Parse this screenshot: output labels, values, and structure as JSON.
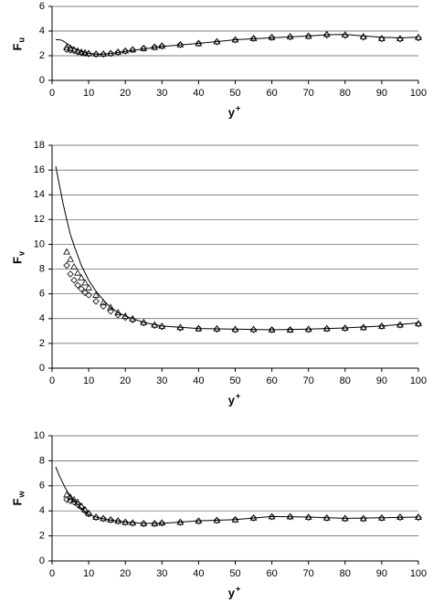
{
  "chart_data": [
    {
      "type": "line",
      "x_label": "y",
      "x_label_sup": "+",
      "y_label": "F",
      "y_label_sub": "u",
      "xlim": [
        0,
        100
      ],
      "xticks": [
        0,
        10,
        20,
        30,
        40,
        50,
        60,
        70,
        80,
        90,
        100
      ],
      "ylim": [
        0,
        6
      ],
      "yticks": [
        0,
        2,
        4,
        6
      ],
      "grid": true,
      "series": [
        {
          "marker": "none",
          "color": "#000000",
          "x": [
            1,
            2,
            3,
            4,
            5,
            6,
            8,
            10,
            12,
            14,
            16,
            20,
            25,
            30,
            40,
            50,
            60,
            70,
            75,
            80,
            85,
            90,
            95,
            100
          ],
          "values": [
            3.3,
            3.3,
            3.2,
            3.0,
            2.8,
            2.6,
            2.35,
            2.2,
            2.12,
            2.12,
            2.18,
            2.35,
            2.55,
            2.75,
            3.0,
            3.3,
            3.45,
            3.6,
            3.7,
            3.72,
            3.6,
            3.5,
            3.45,
            3.5
          ]
        },
        {
          "marker": "triangle",
          "color": "#000000",
          "x": [
            4,
            5,
            6,
            7,
            8,
            9,
            10,
            12,
            14,
            16,
            18,
            20,
            22,
            25,
            28,
            30,
            35,
            40,
            45,
            50,
            55,
            60,
            65,
            70,
            75,
            80,
            85,
            90,
            95,
            100
          ],
          "values": [
            2.7,
            2.6,
            2.5,
            2.4,
            2.3,
            2.25,
            2.2,
            2.15,
            2.15,
            2.2,
            2.3,
            2.4,
            2.5,
            2.6,
            2.7,
            2.8,
            2.9,
            3.0,
            3.15,
            3.3,
            3.4,
            3.5,
            3.55,
            3.6,
            3.75,
            3.7,
            3.55,
            3.4,
            3.4,
            3.5
          ]
        },
        {
          "marker": "diamond",
          "color": "#000000",
          "x": [
            4,
            5,
            6,
            7,
            8,
            9,
            10,
            12,
            14,
            16,
            18,
            20,
            22,
            25,
            28,
            30,
            35,
            40,
            45,
            50,
            55,
            60,
            65,
            70,
            75,
            80,
            85,
            90,
            95,
            100
          ],
          "values": [
            2.5,
            2.45,
            2.4,
            2.3,
            2.25,
            2.2,
            2.15,
            2.12,
            2.12,
            2.18,
            2.28,
            2.38,
            2.48,
            2.6,
            2.7,
            2.78,
            2.9,
            3.0,
            3.12,
            3.28,
            3.4,
            3.48,
            3.52,
            3.58,
            3.68,
            3.65,
            3.5,
            3.38,
            3.35,
            3.45
          ]
        }
      ]
    },
    {
      "type": "line",
      "x_label": "y",
      "x_label_sup": "+",
      "y_label": "F",
      "y_label_sub": "v",
      "xlim": [
        0,
        100
      ],
      "xticks": [
        0,
        10,
        20,
        30,
        40,
        50,
        60,
        70,
        80,
        90,
        100
      ],
      "ylim": [
        0,
        18
      ],
      "yticks": [
        0,
        2,
        4,
        6,
        8,
        10,
        12,
        14,
        16,
        18
      ],
      "grid": true,
      "series": [
        {
          "marker": "none",
          "color": "#000000",
          "x": [
            1,
            2,
            3,
            4,
            5,
            6,
            8,
            10,
            12,
            14,
            16,
            18,
            20,
            25,
            30,
            40,
            50,
            60,
            70,
            80,
            90,
            100
          ],
          "values": [
            16.3,
            14.8,
            13.3,
            12.0,
            10.8,
            9.9,
            8.3,
            7.1,
            6.2,
            5.5,
            4.9,
            4.5,
            4.2,
            3.7,
            3.4,
            3.2,
            3.15,
            3.1,
            3.15,
            3.25,
            3.4,
            3.65
          ]
        },
        {
          "marker": "triangle",
          "color": "#000000",
          "x": [
            4,
            5,
            6,
            7,
            8,
            9,
            10,
            12,
            14,
            16,
            18,
            20,
            22,
            25,
            28,
            30,
            35,
            40,
            45,
            50,
            55,
            60,
            65,
            70,
            75,
            80,
            85,
            90,
            95,
            100
          ],
          "values": [
            9.4,
            8.8,
            8.2,
            7.7,
            7.3,
            6.9,
            6.5,
            5.9,
            5.3,
            4.9,
            4.5,
            4.2,
            4.0,
            3.7,
            3.5,
            3.4,
            3.3,
            3.2,
            3.2,
            3.15,
            3.15,
            3.1,
            3.1,
            3.15,
            3.2,
            3.25,
            3.3,
            3.4,
            3.5,
            3.6
          ]
        },
        {
          "marker": "diamond",
          "color": "#000000",
          "x": [
            4,
            5,
            6,
            7,
            8,
            9,
            10,
            12,
            14,
            16,
            18,
            20,
            22,
            25,
            28,
            30,
            35,
            40,
            45,
            50,
            55,
            60,
            65,
            70,
            75,
            80,
            85,
            90,
            95,
            100
          ],
          "values": [
            8.3,
            7.6,
            7.1,
            6.7,
            6.4,
            6.1,
            5.9,
            5.4,
            5.0,
            4.6,
            4.3,
            4.1,
            3.9,
            3.65,
            3.45,
            3.35,
            3.25,
            3.2,
            3.15,
            3.1,
            3.1,
            3.1,
            3.1,
            3.12,
            3.18,
            3.22,
            3.28,
            3.38,
            3.48,
            3.58
          ]
        }
      ]
    },
    {
      "type": "line",
      "x_label": "y",
      "x_label_sup": "+",
      "y_label": "F",
      "y_label_sub": "w",
      "xlim": [
        0,
        100
      ],
      "xticks": [
        0,
        10,
        20,
        30,
        40,
        50,
        60,
        70,
        80,
        90,
        100
      ],
      "ylim": [
        0,
        10
      ],
      "yticks": [
        0,
        2,
        4,
        6,
        8,
        10
      ],
      "grid": true,
      "series": [
        {
          "marker": "none",
          "color": "#000000",
          "x": [
            1,
            2,
            3,
            4,
            5,
            6,
            8,
            10,
            12,
            15,
            20,
            25,
            30,
            40,
            50,
            60,
            70,
            80,
            90,
            100
          ],
          "values": [
            7.5,
            6.8,
            6.2,
            5.6,
            5.2,
            4.8,
            4.2,
            3.7,
            3.5,
            3.3,
            3.1,
            3.0,
            3.0,
            3.2,
            3.3,
            3.55,
            3.5,
            3.4,
            3.45,
            3.5
          ]
        },
        {
          "marker": "triangle",
          "color": "#000000",
          "x": [
            4,
            5,
            6,
            7,
            8,
            9,
            10,
            12,
            14,
            16,
            18,
            20,
            22,
            25,
            28,
            30,
            35,
            40,
            45,
            50,
            55,
            60,
            65,
            70,
            75,
            80,
            85,
            90,
            95,
            100
          ],
          "values": [
            5.3,
            5.1,
            4.9,
            4.7,
            4.4,
            4.1,
            3.8,
            3.5,
            3.4,
            3.3,
            3.2,
            3.1,
            3.05,
            3.0,
            3.0,
            3.05,
            3.1,
            3.2,
            3.25,
            3.3,
            3.45,
            3.55,
            3.55,
            3.5,
            3.45,
            3.4,
            3.4,
            3.45,
            3.5,
            3.5
          ]
        },
        {
          "marker": "diamond",
          "color": "#000000",
          "x": [
            4,
            5,
            6,
            7,
            8,
            9,
            10,
            12,
            14,
            16,
            18,
            20,
            22,
            25,
            28,
            30,
            35,
            40,
            45,
            50,
            55,
            60,
            65,
            70,
            75,
            80,
            85,
            90,
            95,
            100
          ],
          "values": [
            4.9,
            4.8,
            4.7,
            4.5,
            4.3,
            4.0,
            3.75,
            3.48,
            3.38,
            3.28,
            3.18,
            3.08,
            3.02,
            2.98,
            2.98,
            3.02,
            3.08,
            3.18,
            3.24,
            3.3,
            3.42,
            3.52,
            3.52,
            3.48,
            3.42,
            3.38,
            3.38,
            3.42,
            3.48,
            3.48
          ]
        }
      ]
    }
  ]
}
